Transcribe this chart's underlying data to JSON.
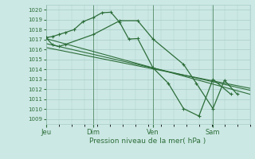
{
  "bg_color": "#cce8e4",
  "grid_color": "#a8ccc8",
  "line_color": "#2d6e3a",
  "xlabel": "Pression niveau de la mer( hPa )",
  "ylim": [
    1008.5,
    1020.5
  ],
  "yticks": [
    1009,
    1010,
    1011,
    1012,
    1013,
    1014,
    1015,
    1016,
    1017,
    1018,
    1019,
    1020
  ],
  "day_positions": [
    0,
    37,
    84,
    131
  ],
  "day_labels": [
    "Jeu",
    "Dim",
    "Ven",
    "Sam"
  ],
  "xlim": [
    0,
    160
  ],
  "series1_x": [
    0,
    5,
    10,
    15,
    22,
    29,
    37,
    44,
    51,
    58,
    65,
    72,
    84,
    96,
    108,
    120,
    131,
    145
  ],
  "series1_y": [
    1017.2,
    1017.3,
    1017.5,
    1017.7,
    1018.0,
    1018.8,
    1019.2,
    1019.7,
    1019.75,
    1018.7,
    1017.05,
    1017.1,
    1014.15,
    1012.6,
    1010.05,
    1009.3,
    1013.0,
    1011.5
  ],
  "series2_x": [
    0,
    5,
    10,
    15,
    37,
    58,
    72,
    84,
    108,
    118,
    131,
    140,
    150
  ],
  "series2_y": [
    1017.2,
    1016.5,
    1016.3,
    1016.5,
    1017.5,
    1018.9,
    1018.9,
    1017.05,
    1014.5,
    1012.6,
    1010.05,
    1012.9,
    1011.5
  ],
  "series3_x": [
    0,
    160
  ],
  "series3_y": [
    1017.1,
    1011.5
  ],
  "series4_x": [
    0,
    160
  ],
  "series4_y": [
    1016.6,
    1011.9
  ],
  "series5_x": [
    0,
    160
  ],
  "series5_y": [
    1016.2,
    1012.1
  ]
}
